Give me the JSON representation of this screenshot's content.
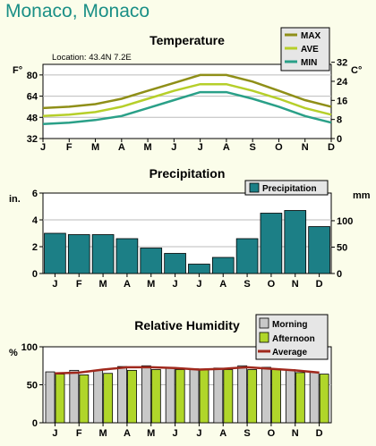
{
  "page_title": "Monaco, Monaco",
  "colors": {
    "background": "#fbfdea",
    "title": "#1a8f86",
    "max": "#8f8f18",
    "ave": "#b6cf2a",
    "min": "#2aa088",
    "precip": "#1c7f86",
    "morning": "#c8c8c8",
    "afternoon": "#b0d62a",
    "average": "#a0281c"
  },
  "chart_data": [
    {
      "type": "line",
      "title": "Temperature",
      "location": "Location: 43.4N 7.2E",
      "categories": [
        "J",
        "F",
        "M",
        "A",
        "M",
        "J",
        "J",
        "A",
        "S",
        "O",
        "N",
        "D"
      ],
      "ylabel_left": "F°",
      "ylabel_right": "C°",
      "yticks_left": [
        "80",
        "64",
        "48",
        "32"
      ],
      "yticks_right": [
        "32",
        "24",
        "16",
        "8",
        "0"
      ],
      "ylim_f": [
        32,
        88
      ],
      "series": [
        {
          "name": "MAX",
          "values": [
            55,
            56,
            58,
            62,
            68,
            74,
            80,
            80,
            75,
            68,
            61,
            56
          ]
        },
        {
          "name": "AVE",
          "values": [
            49,
            50,
            52,
            56,
            62,
            68,
            73,
            73,
            68,
            62,
            55,
            50
          ]
        },
        {
          "name": "MIN",
          "values": [
            43,
            44,
            46,
            49,
            55,
            61,
            67,
            67,
            62,
            56,
            49,
            44
          ]
        }
      ],
      "grid": true,
      "legend": "top-right"
    },
    {
      "type": "bar",
      "title": "Precipitation",
      "categories": [
        "J",
        "F",
        "M",
        "A",
        "M",
        "J",
        "J",
        "A",
        "S",
        "O",
        "N",
        "D"
      ],
      "ylabel_left": "in.",
      "ylabel_right": "mm",
      "yticks_left": [
        "6",
        "4",
        "2",
        "0"
      ],
      "yticks_right": [
        "100",
        "50",
        "0"
      ],
      "ylim_in": [
        0,
        6
      ],
      "series": [
        {
          "name": "Precipitation",
          "values": [
            3.0,
            2.9,
            2.9,
            2.6,
            1.9,
            1.5,
            0.7,
            1.2,
            2.6,
            4.5,
            4.7,
            3.5
          ]
        }
      ],
      "grid": true,
      "legend": "top-right"
    },
    {
      "type": "bar",
      "title": "Relative Humidity",
      "categories": [
        "J",
        "F",
        "M",
        "A",
        "M",
        "J",
        "J",
        "A",
        "S",
        "O",
        "N",
        "D"
      ],
      "ylabel_left": "%",
      "yticks_left": [
        "100",
        "50",
        "0"
      ],
      "ylim": [
        0,
        100
      ],
      "series": [
        {
          "name": "Morning",
          "values": [
            67,
            69,
            69,
            74,
            75,
            73,
            71,
            72,
            75,
            73,
            70,
            67
          ]
        },
        {
          "name": "Afternoon",
          "values": [
            64,
            63,
            65,
            69,
            70,
            70,
            70,
            70,
            70,
            70,
            66,
            64
          ]
        },
        {
          "name": "Average",
          "values": [
            65,
            66,
            70,
            73,
            73,
            72,
            70,
            71,
            73,
            71,
            69,
            66
          ]
        }
      ],
      "grid": true,
      "legend": "top-right"
    }
  ]
}
